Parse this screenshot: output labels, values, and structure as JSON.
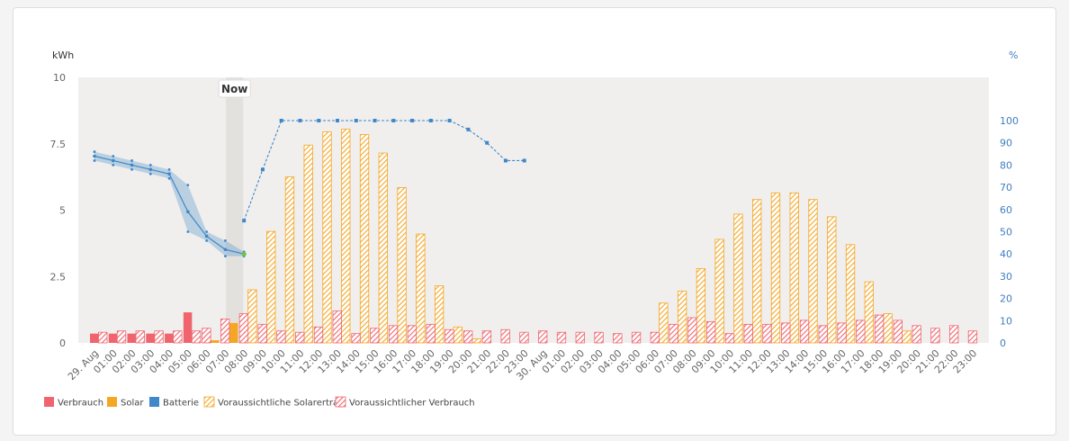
{
  "chart_data": {
    "type": "bar",
    "y_left_label": "kWh",
    "y_right_label": "%",
    "y_left_ticks": [
      "0",
      "2.5",
      "5",
      "7.5",
      "10"
    ],
    "y_left_range": [
      0,
      10
    ],
    "y_right_ticks": [
      "0",
      "10",
      "20",
      "30",
      "40",
      "50",
      "60",
      "70",
      "80",
      "90",
      "100"
    ],
    "y_right_range": [
      0,
      120
    ],
    "now_label": "Now",
    "now_index": 8,
    "x_labels": [
      "29. Aug",
      "01:00",
      "02:00",
      "03:00",
      "04:00",
      "05:00",
      "06:00",
      "07:00",
      "08:00",
      "09:00",
      "10:00",
      "11:00",
      "12:00",
      "13:00",
      "14:00",
      "15:00",
      "16:00",
      "17:00",
      "18:00",
      "19:00",
      "20:00",
      "21:00",
      "22:00",
      "23:00",
      "30. Aug",
      "01:00",
      "02:00",
      "03:00",
      "04:00",
      "05:00",
      "06:00",
      "07:00",
      "08:00",
      "09:00",
      "10:00",
      "11:00",
      "12:00",
      "13:00",
      "14:00",
      "15:00",
      "16:00",
      "17:00",
      "18:00",
      "19:00",
      "20:00",
      "21:00",
      "22:00",
      "23:00"
    ],
    "series": [
      {
        "name": "Verbrauch",
        "color": "#f0646e",
        "style": "solid",
        "values": [
          0.35,
          0.35,
          0.35,
          0.35,
          0.35,
          1.15,
          0.45,
          0.4,
          0,
          0,
          0,
          0,
          0,
          0,
          0,
          0,
          0,
          0,
          0,
          0,
          0,
          0,
          0,
          0,
          0,
          0,
          0,
          0,
          0,
          0,
          0,
          0,
          0,
          0,
          0,
          0,
          0,
          0,
          0,
          0,
          0,
          0,
          0,
          0,
          0,
          0,
          0,
          0
        ]
      },
      {
        "name": "Solar",
        "color": "#f5a623",
        "style": "solid",
        "values": [
          0,
          0,
          0,
          0,
          0,
          0,
          0.1,
          0.75,
          0,
          0,
          0,
          0,
          0,
          0,
          0,
          0,
          0,
          0,
          0,
          0,
          0,
          0,
          0,
          0,
          0,
          0,
          0,
          0,
          0,
          0,
          0,
          0,
          0,
          0,
          0,
          0,
          0,
          0,
          0,
          0,
          0,
          0,
          0,
          0,
          0,
          0,
          0,
          0
        ]
      },
      {
        "name": "Batterie",
        "color": "#3f87c8",
        "style": "line"
      },
      {
        "name": "Voraussichtliche Solarertrag",
        "color": "#f5a623",
        "style": "hatched",
        "values": [
          0,
          0,
          0,
          0,
          0,
          0,
          0,
          0,
          2.0,
          4.2,
          6.25,
          7.45,
          7.95,
          8.05,
          7.85,
          7.15,
          5.85,
          4.1,
          2.15,
          0.6,
          0.15,
          0,
          0,
          0,
          0,
          0,
          0,
          0,
          0,
          0,
          1.5,
          1.95,
          2.8,
          3.9,
          4.85,
          5.4,
          5.65,
          5.65,
          5.4,
          4.75,
          3.7,
          2.3,
          1.1,
          0.45,
          0,
          0,
          0,
          0
        ]
      },
      {
        "name": "Voraussichtlicher Verbrauch",
        "color": "#f0646e",
        "style": "hatched",
        "values": [
          0.4,
          0.45,
          0.45,
          0.45,
          0.45,
          0.45,
          0.55,
          0.9,
          1.1,
          0.7,
          0.45,
          0.4,
          0.6,
          1.2,
          0.35,
          0.55,
          0.65,
          0.65,
          0.7,
          0.5,
          0.45,
          0.45,
          0.5,
          0.4,
          0.45,
          0.4,
          0.4,
          0.4,
          0.35,
          0.4,
          0.4,
          0.7,
          0.95,
          0.8,
          0.35,
          0.7,
          0.7,
          0.75,
          0.85,
          0.65,
          0.75,
          0.85,
          1.05,
          0.85,
          0.65,
          0.55,
          0.65,
          0.45
        ]
      }
    ],
    "battery_history_percent": {
      "x": [
        0,
        1,
        2,
        3,
        4,
        5,
        6,
        7,
        8
      ],
      "mid": [
        84,
        82,
        80,
        78,
        76,
        59,
        48,
        42,
        40
      ],
      "high": [
        86,
        84,
        82,
        80,
        78,
        71,
        50,
        46,
        41
      ],
      "low": [
        82,
        80,
        78,
        76,
        74,
        50,
        46,
        39,
        39
      ]
    },
    "battery_forecast_percent": {
      "x": [
        8,
        9,
        10,
        11,
        12,
        13,
        14,
        15,
        16,
        17,
        18,
        19,
        20,
        21,
        22,
        23
      ],
      "values": [
        55,
        78,
        100,
        100,
        100,
        100,
        100,
        100,
        100,
        100,
        100,
        100,
        96,
        90,
        82,
        82
      ]
    }
  }
}
